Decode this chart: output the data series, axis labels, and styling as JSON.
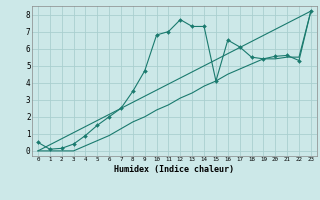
{
  "xlabel": "Humidex (Indice chaleur)",
  "bg_color": "#cce8e8",
  "line_color": "#1a7a6e",
  "grid_color": "#aacfcf",
  "y_line1": [
    0.5,
    0.1,
    0.15,
    0.4,
    0.9,
    1.5,
    2.0,
    2.5,
    3.5,
    4.7,
    6.8,
    7.0,
    7.7,
    7.3,
    7.3,
    4.1,
    6.5,
    6.1,
    5.5,
    5.4,
    5.55,
    5.6,
    5.3,
    8.2
  ],
  "y_line2": [
    0.0,
    0.0,
    0.0,
    0.0,
    0.3,
    0.6,
    0.9,
    1.3,
    1.7,
    2.0,
    2.4,
    2.7,
    3.1,
    3.4,
    3.8,
    4.1,
    4.5,
    4.8,
    5.1,
    5.4,
    5.4,
    5.5,
    5.5,
    8.2
  ],
  "xlim": [
    0,
    23
  ],
  "ylim": [
    0,
    8.5
  ],
  "xticks": [
    0,
    1,
    2,
    3,
    4,
    5,
    6,
    7,
    8,
    9,
    10,
    11,
    12,
    13,
    14,
    15,
    16,
    17,
    18,
    19,
    20,
    21,
    22,
    23
  ],
  "yticks": [
    0,
    1,
    2,
    3,
    4,
    5,
    6,
    7,
    8
  ]
}
